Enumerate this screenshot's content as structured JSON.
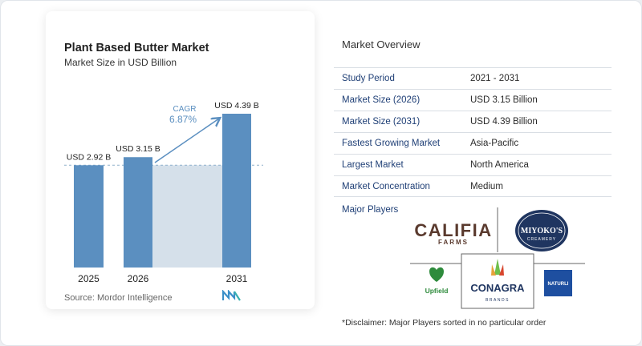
{
  "chart_data": {
    "type": "bar",
    "title": "Plant Based Butter Market",
    "subtitle": "Market Size in USD Billion",
    "categories": [
      "2025",
      "2026",
      "2031"
    ],
    "values": [
      2.92,
      3.15,
      4.39
    ],
    "data_labels": [
      "USD 2.92 B",
      "USD 3.15 B",
      "USD 4.39 B"
    ],
    "ylim": [
      0,
      4.39
    ],
    "annotation": {
      "label": "CAGR",
      "value": "6.87%"
    },
    "reference_line": 2.92,
    "colors": {
      "bar": "#5b8fc0",
      "bar_light": "#d5e0ea",
      "annotation": "#5b8fc0",
      "grid": "#8fb0cc"
    },
    "source": "Source:  Mordor Intelligence"
  },
  "overview": {
    "title": "Market Overview",
    "rows": [
      {
        "label": "Study Period",
        "value": "2021 - 2031"
      },
      {
        "label": "Market Size (2026)",
        "value": "USD 3.15 Billion"
      },
      {
        "label": "Market Size (2031)",
        "value": "USD 4.39 Billion"
      },
      {
        "label": "Fastest Growing Market",
        "value": "Asia-Pacific"
      },
      {
        "label": "Largest Market",
        "value": "North America"
      },
      {
        "label": "Market Concentration",
        "value": "Medium"
      }
    ]
  },
  "players": {
    "title": "Major Players",
    "logos": {
      "califia_main": "CALIFIA",
      "califia_sub": "FARMS",
      "miyokos_main": "MIYOKO'S",
      "miyokos_sub": "CREAMERY",
      "conagra_main": "CONAGRA",
      "conagra_sub": "BRANDS",
      "upfield": "Upfield",
      "naturli": "NATURLI"
    }
  },
  "disclaimer": "*Disclaimer: Major Players sorted in no particular order"
}
